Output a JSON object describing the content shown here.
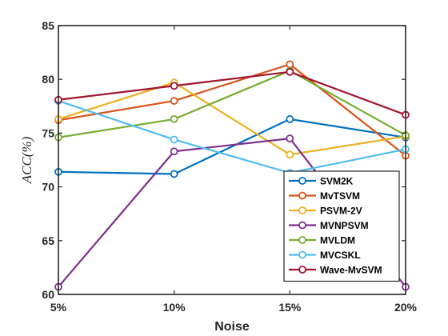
{
  "chart_data": {
    "type": "line",
    "xlabel": "Noise",
    "ylabel": "ACC(%)",
    "x": [
      "5%",
      "10%",
      "15%",
      "20%"
    ],
    "ylim": [
      60,
      85
    ],
    "yticks": [
      60,
      65,
      70,
      75,
      80,
      85
    ],
    "grid": false,
    "legend_position": "bottom-right",
    "series": [
      {
        "name": "SVM2K",
        "color": "#0072BD",
        "values": [
          71.4,
          71.2,
          76.3,
          74.6
        ]
      },
      {
        "name": "MvTSVM",
        "color": "#D95319",
        "values": [
          76.2,
          78.0,
          81.4,
          72.9
        ]
      },
      {
        "name": "PSVM-2V",
        "color": "#EDB120",
        "values": [
          76.3,
          79.7,
          73.0,
          74.7
        ]
      },
      {
        "name": "MVNPSVM",
        "color": "#7E2F8E",
        "values": [
          60.7,
          73.3,
          74.5,
          60.7
        ]
      },
      {
        "name": "MVLDM",
        "color": "#77AC30",
        "values": [
          74.6,
          76.3,
          80.8,
          74.8
        ]
      },
      {
        "name": "MVCSKL",
        "color": "#4DBEEE",
        "values": [
          78.0,
          74.4,
          71.3,
          73.5
        ]
      },
      {
        "name": "Wave-MvSVM",
        "color": "#A2142F",
        "values": [
          78.1,
          79.4,
          80.7,
          76.7
        ]
      }
    ]
  }
}
